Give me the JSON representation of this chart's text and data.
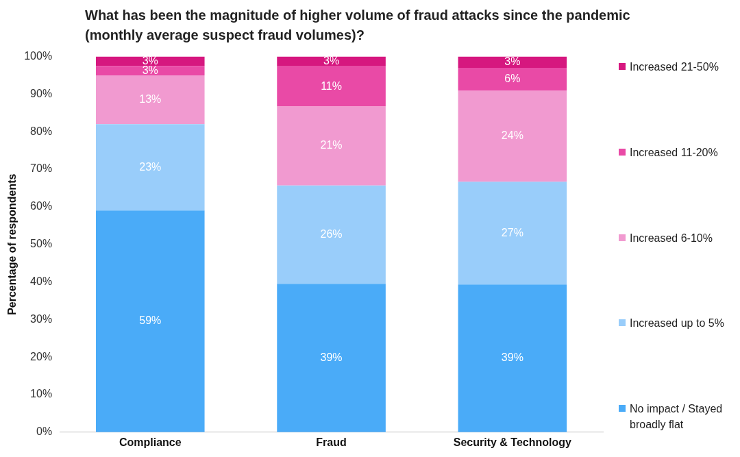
{
  "chart_data": {
    "type": "bar",
    "stacked": true,
    "title": "What has been the magnitude of higher volume of fraud attacks since the pandemic (monthly average suspect fraud volumes)?",
    "ylabel": "Percentage of respondents",
    "categories": [
      "Compliance",
      "Fraud",
      "Security & Technology"
    ],
    "series": [
      {
        "name": "No impact / Stayed broadly flat",
        "color": "#4aabf8",
        "values": [
          59,
          39.5,
          39.3
        ],
        "value_labels": [
          "59%",
          "39%",
          "39%"
        ]
      },
      {
        "name": "Increased up to 5%",
        "color": "#99cdfa",
        "values": [
          23,
          26.2,
          27.4
        ],
        "value_labels": [
          "23%",
          "26%",
          "27%"
        ]
      },
      {
        "name": "Increased 6-10%",
        "color": "#f19ad0",
        "values": [
          13,
          21,
          24.3
        ],
        "value_labels": [
          "13%",
          "21%",
          "24%"
        ]
      },
      {
        "name": "Increased 11-20%",
        "color": "#e94aa6",
        "values": [
          2.5,
          10.7,
          6
        ],
        "value_labels": [
          "3%",
          "11%",
          "6%"
        ]
      },
      {
        "name": "Increased 21-50%",
        "color": "#d6177f",
        "values": [
          2.5,
          2.6,
          3
        ],
        "value_labels": [
          "3%",
          "3%",
          "3%"
        ]
      }
    ],
    "ylim": [
      0,
      100
    ],
    "yticks": [
      {
        "value": 0,
        "label": "0%"
      },
      {
        "value": 10,
        "label": "10%"
      },
      {
        "value": 20,
        "label": "20%"
      },
      {
        "value": 30,
        "label": "30%"
      },
      {
        "value": 40,
        "label": "40%"
      },
      {
        "value": 50,
        "label": "50%"
      },
      {
        "value": 60,
        "label": "60%"
      },
      {
        "value": 70,
        "label": "70%"
      },
      {
        "value": 80,
        "label": "80%"
      },
      {
        "value": 90,
        "label": "90%"
      },
      {
        "value": 100,
        "label": "100%"
      }
    ],
    "grid": false,
    "legend": "right"
  }
}
